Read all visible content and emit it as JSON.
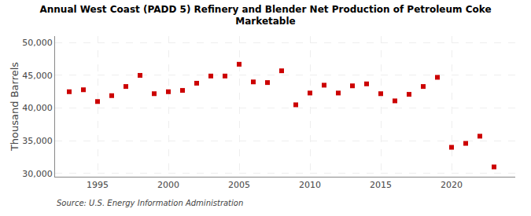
{
  "chart_data": {
    "type": "scatter",
    "title": "Annual West Coast (PADD 5) Refinery and Blender Net Production of Petroleum Coke\nMarketable",
    "ylabel": "Thousand Barrels",
    "annotations": [
      "Source: U.S. Energy Information Administration"
    ],
    "x": [
      1993,
      1994,
      1995,
      1996,
      1997,
      1998,
      1999,
      2000,
      2001,
      2002,
      2003,
      2004,
      2005,
      2006,
      2007,
      2008,
      2009,
      2010,
      2011,
      2012,
      2013,
      2014,
      2015,
      2016,
      2017,
      2018,
      2019,
      2020,
      2021,
      2022,
      2023
    ],
    "values": [
      42500,
      42800,
      41000,
      41900,
      43300,
      45000,
      42200,
      42500,
      42700,
      43800,
      44900,
      44900,
      46700,
      44000,
      43900,
      45700,
      40500,
      42300,
      43500,
      42300,
      43400,
      43700,
      42200,
      41100,
      42100,
      43300,
      44700,
      34000,
      34600,
      35700,
      31000
    ],
    "color": "#cc0000",
    "marker": "square",
    "xlim": [
      1992.0,
      2024.5
    ],
    "ylim": [
      29500,
      51000
    ],
    "xticks": [
      1995,
      2000,
      2005,
      2010,
      2015,
      2020
    ],
    "yticks": [
      {
        "value": 30000,
        "label": "30,000"
      },
      {
        "value": 35000,
        "label": "35,000"
      },
      {
        "value": 40000,
        "label": "40,000"
      },
      {
        "value": 45000,
        "label": "45,000"
      },
      {
        "value": 50000,
        "label": "50,000"
      }
    ],
    "grid": true
  }
}
